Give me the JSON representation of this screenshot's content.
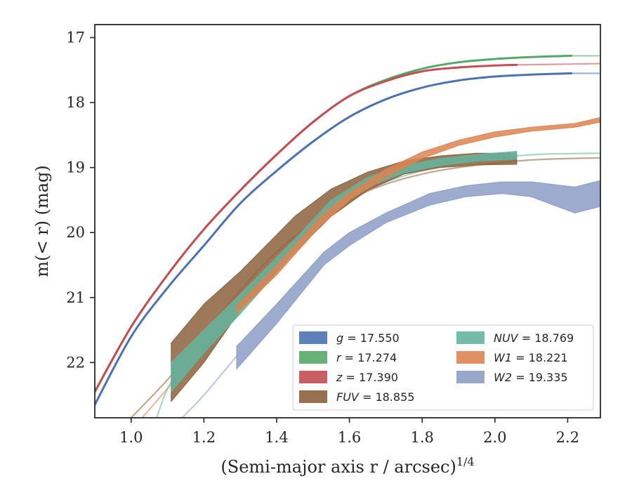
{
  "chart_data": {
    "type": "line",
    "title": "",
    "xlabel": "(Semi-major axis r / arcsec)",
    "xlabel_exponent": "1/4",
    "ylabel": "m(< r) (mag)",
    "xlim": [
      0.9,
      2.29
    ],
    "ylim": [
      22.85,
      16.8
    ],
    "y_inverted": true,
    "grid": false,
    "legend_position": "lower-right",
    "x_ticks": [
      "1.0",
      "1.2",
      "1.4",
      "1.6",
      "1.8",
      "2.0",
      "2.2"
    ],
    "y_ticks": [
      "17",
      "18",
      "19",
      "20",
      "21",
      "22"
    ],
    "series": [
      {
        "name": "g = 17.550",
        "label_var": "g",
        "label_val": "= 17.550",
        "color": "#4c72b0",
        "style": "line",
        "x": [
          0.9,
          1.0,
          1.1,
          1.2,
          1.3,
          1.4,
          1.5,
          1.6,
          1.7,
          1.8,
          1.9,
          2.0,
          2.1,
          2.21
        ],
        "y": [
          22.65,
          21.6,
          20.85,
          20.2,
          19.55,
          19.05,
          18.6,
          18.22,
          17.95,
          17.77,
          17.66,
          17.6,
          17.57,
          17.55
        ],
        "x_ext": [
          2.21,
          2.29
        ],
        "y_ext": [
          17.55,
          17.55
        ]
      },
      {
        "name": "r = 17.274",
        "label_var": "r",
        "label_val": "= 17.274",
        "color": "#55a868",
        "style": "line",
        "x": [
          0.9,
          1.0,
          1.1,
          1.2,
          1.3,
          1.4,
          1.5,
          1.6,
          1.7,
          1.8,
          1.9,
          2.0,
          2.1,
          2.21
        ],
        "y": [
          22.45,
          21.45,
          20.65,
          19.95,
          19.35,
          18.8,
          18.3,
          17.9,
          17.65,
          17.48,
          17.38,
          17.33,
          17.3,
          17.28
        ],
        "x_ext": [
          2.21,
          2.29
        ],
        "y_ext": [
          17.28,
          17.28
        ]
      },
      {
        "name": "z = 17.390",
        "label_var": "z",
        "label_val": "= 17.390",
        "color": "#c44e52",
        "style": "line",
        "x": [
          0.9,
          1.0,
          1.1,
          1.2,
          1.3,
          1.4,
          1.5,
          1.6,
          1.7,
          1.8,
          1.9,
          2.0,
          2.06
        ],
        "y": [
          22.45,
          21.45,
          20.65,
          19.95,
          19.35,
          18.8,
          18.3,
          17.9,
          17.67,
          17.52,
          17.46,
          17.43,
          17.42
        ],
        "x_ext": [
          2.06,
          2.29
        ],
        "y_ext": [
          17.42,
          17.4
        ]
      },
      {
        "name": "FUV = 18.855",
        "label_var": "FUV",
        "label_val": "= 18.855",
        "color": "#8c613c",
        "style": "band",
        "x": [
          1.11,
          1.2,
          1.3,
          1.45,
          1.55,
          1.65,
          1.75,
          1.85,
          1.95,
          2.06
        ],
        "y_lo": [
          21.7,
          21.1,
          20.6,
          19.75,
          19.33,
          19.07,
          18.9,
          18.82,
          18.78,
          18.78
        ],
        "y_hi": [
          22.6,
          22.0,
          21.2,
          20.3,
          19.75,
          19.35,
          19.1,
          19.0,
          18.96,
          18.95
        ],
        "x_ext": [
          1.0,
          1.11,
          1.2,
          1.4,
          1.6,
          1.8,
          2.06,
          2.29
        ],
        "y_ext": [
          22.85,
          22.2,
          21.55,
          20.3,
          19.5,
          19.1,
          18.9,
          18.85
        ]
      },
      {
        "name": "NUV = 18.769",
        "label_var": "NUV",
        "label_val": "= 18.769",
        "color": "#64b5a0",
        "style": "band",
        "x": [
          1.11,
          1.2,
          1.3,
          1.45,
          1.55,
          1.65,
          1.75,
          1.85,
          1.95,
          2.06
        ],
        "y_lo": [
          22.0,
          21.5,
          20.95,
          20.1,
          19.5,
          19.15,
          18.97,
          18.86,
          18.8,
          18.75
        ],
        "y_hi": [
          22.45,
          21.85,
          21.25,
          20.3,
          19.7,
          19.3,
          19.08,
          18.97,
          18.9,
          18.87
        ],
        "x_ext": [
          1.07,
          1.11,
          1.2,
          1.4,
          1.6,
          1.8,
          2.06,
          2.29
        ],
        "y_ext": [
          22.85,
          22.3,
          21.65,
          20.45,
          19.5,
          19.05,
          18.82,
          18.78
        ]
      },
      {
        "name": "W1 = 18.221",
        "label_var": "W1",
        "label_val": "= 18.221",
        "color": "#dd8452",
        "style": "band",
        "x": [
          1.29,
          1.4,
          1.52,
          1.6,
          1.7,
          1.8,
          1.9,
          2.0,
          2.1,
          2.22,
          2.29
        ],
        "y_lo": [
          21.12,
          20.5,
          19.75,
          19.38,
          19.03,
          18.76,
          18.58,
          18.45,
          18.38,
          18.32,
          18.23
        ],
        "y_hi": [
          21.25,
          20.65,
          19.9,
          19.5,
          19.15,
          18.86,
          18.66,
          18.53,
          18.44,
          18.38,
          18.3
        ],
        "x_ext": [
          1.03,
          1.1,
          1.2,
          1.29
        ],
        "y_ext": [
          22.85,
          22.4,
          21.75,
          21.2
        ]
      },
      {
        "name": "W2 = 19.335",
        "label_var": "W2",
        "label_val": "= 19.335",
        "color": "#8c9ec5",
        "style": "band",
        "x": [
          1.29,
          1.4,
          1.53,
          1.6,
          1.7,
          1.82,
          1.92,
          2.02,
          2.1,
          2.22,
          2.29
        ],
        "y_lo": [
          21.75,
          21.1,
          20.3,
          20.0,
          19.7,
          19.4,
          19.28,
          19.22,
          19.22,
          19.3,
          19.2
        ],
        "y_hi": [
          22.1,
          21.4,
          20.5,
          20.2,
          19.85,
          19.58,
          19.45,
          19.4,
          19.45,
          19.7,
          19.6
        ],
        "x_ext": [
          1.14,
          1.2,
          1.29
        ],
        "y_ext": [
          22.85,
          22.5,
          21.9
        ]
      }
    ]
  }
}
